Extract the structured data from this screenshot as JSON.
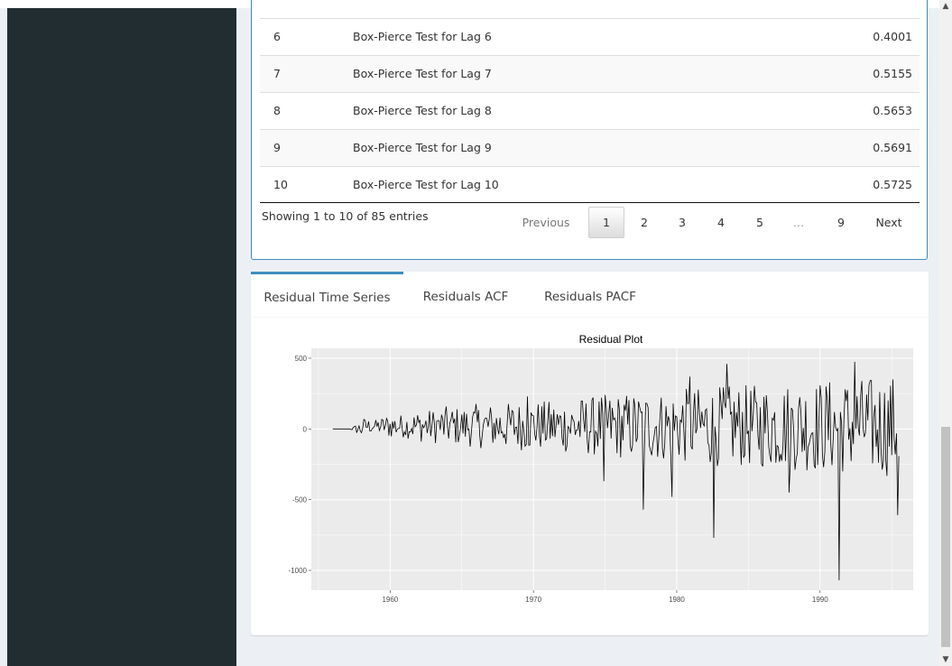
{
  "table": {
    "rows": [
      {
        "lag": "6",
        "test": "Box-Pierce Test for Lag 6",
        "pvalue": "0.4001"
      },
      {
        "lag": "7",
        "test": "Box-Pierce Test for Lag 7",
        "pvalue": "0.5155"
      },
      {
        "lag": "8",
        "test": "Box-Pierce Test for Lag 8",
        "pvalue": "0.5653"
      },
      {
        "lag": "9",
        "test": "Box-Pierce Test for Lag 9",
        "pvalue": "0.5691"
      },
      {
        "lag": "10",
        "test": "Box-Pierce Test for Lag 10",
        "pvalue": "0.5725"
      }
    ],
    "info": "Showing 1 to 10 of 85 entries",
    "pagination": {
      "previous": "Previous",
      "pages": [
        "1",
        "2",
        "3",
        "4",
        "5",
        "…",
        "9"
      ],
      "next": "Next",
      "current": "1"
    }
  },
  "tabs": [
    {
      "label": "Residual Time Series",
      "active": true
    },
    {
      "label": "Residuals ACF",
      "active": false
    },
    {
      "label": "Residuals PACF",
      "active": false
    }
  ],
  "chart_data": {
    "type": "line",
    "title": "Residual Plot",
    "xlabel": "",
    "ylabel": "",
    "xlim": [
      1954.5,
      1996.5
    ],
    "ylim": [
      -1140,
      570
    ],
    "xticks": [
      1960,
      1970,
      1980,
      1990
    ],
    "yticks": [
      500,
      0,
      -500,
      -1000
    ],
    "grid": true,
    "series_shape": [
      [
        1956.0,
        0
      ],
      [
        1957.2,
        0
      ],
      [
        1958.0,
        80
      ],
      [
        1959.0,
        60
      ],
      [
        1960.0,
        120
      ],
      [
        1961.0,
        110
      ],
      [
        1962.0,
        150
      ],
      [
        1963.0,
        160
      ],
      [
        1964.0,
        190
      ],
      [
        1965.0,
        180
      ],
      [
        1966.0,
        210
      ],
      [
        1967.0,
        210
      ],
      [
        1968.0,
        220
      ],
      [
        1969.0,
        230
      ],
      [
        1970.0,
        240
      ],
      [
        1971.0,
        240
      ],
      [
        1972.0,
        250
      ],
      [
        1973.0,
        270
      ],
      [
        1974.0,
        280
      ],
      [
        1975.0,
        300
      ],
      [
        1976.0,
        310
      ],
      [
        1977.0,
        320
      ],
      [
        1978.0,
        330
      ],
      [
        1979.0,
        330
      ],
      [
        1980.0,
        350
      ],
      [
        1981.0,
        360
      ],
      [
        1982.0,
        370
      ],
      [
        1983.0,
        380
      ],
      [
        1984.0,
        390
      ],
      [
        1985.0,
        390
      ],
      [
        1986.0,
        400
      ],
      [
        1987.0,
        410
      ],
      [
        1988.0,
        420
      ],
      [
        1989.0,
        430
      ],
      [
        1990.0,
        440
      ],
      [
        1991.0,
        450
      ],
      [
        1992.0,
        460
      ],
      [
        1993.0,
        460
      ],
      [
        1994.0,
        470
      ],
      [
        1995.0,
        480
      ],
      [
        1995.5,
        480
      ]
    ],
    "spikes": [
      {
        "x": 1974.9,
        "y": -370
      },
      {
        "x": 1977.7,
        "y": -570
      },
      {
        "x": 1979.7,
        "y": -480
      },
      {
        "x": 1982.6,
        "y": -770
      },
      {
        "x": 1987.8,
        "y": -450
      },
      {
        "x": 1991.3,
        "y": -1070
      },
      {
        "x": 1992.4,
        "y": 475
      },
      {
        "x": 1995.4,
        "y": -610
      },
      {
        "x": 1963.3,
        "y": 60
      },
      {
        "x": 1969.6,
        "y": 230
      },
      {
        "x": 1980.9,
        "y": 370
      },
      {
        "x": 1983.5,
        "y": 460
      }
    ],
    "colors": {
      "line": "#000000",
      "panel": "#ebebeb",
      "grid": "#ffffff"
    }
  },
  "colors": {
    "sidebar": "#222d32",
    "content_bg": "#ecf0f5",
    "accent": "#3c8dbc"
  }
}
